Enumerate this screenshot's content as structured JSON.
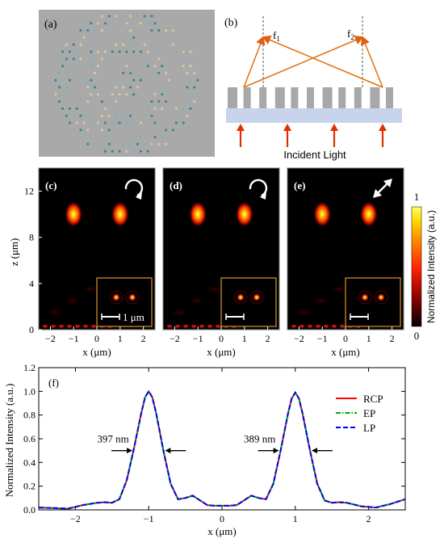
{
  "panel_labels": {
    "a": "(a)",
    "b": "(b)",
    "c": "(c)",
    "d": "(d)",
    "e": "(e)",
    "f": "(f)"
  },
  "panel_b": {
    "focus1": "f",
    "focus1_sub": "1",
    "focus2": "f",
    "focus2_sub": "2",
    "incident_label": "Incident Light"
  },
  "maps": {
    "ylabel": "z (μm)",
    "xlabel": "x (μm)",
    "x_ticks": [
      "−2",
      "−1",
      "0",
      "1",
      "2"
    ],
    "y_ticks": [
      "0",
      "4",
      "8",
      "12"
    ],
    "scale_bar": "1 μm",
    "polarization_icons": [
      "rcp-arrow-icon",
      "ep-arrow-icon",
      "lp-arrow-icon"
    ],
    "focus_x_um": [
      -1,
      1
    ],
    "focus_z_um": 10
  },
  "colorbar": {
    "label": "Normalized Intensity (a.u.)",
    "max_label": "1",
    "min_label": "0",
    "colors": [
      "#000000",
      "#800000",
      "#ff2000",
      "#ff8000",
      "#ffd800",
      "#ffff60"
    ]
  },
  "chart_data": {
    "type": "line",
    "title": "",
    "xlabel": "x (μm)",
    "ylabel": "Normalized Intensity (a.u.)",
    "xlim": [
      -2.5,
      2.5
    ],
    "ylim": [
      0,
      1.2
    ],
    "x_ticks": [
      -2,
      -1,
      0,
      1,
      2
    ],
    "x_tick_labels": [
      "−2",
      "−1",
      "0",
      "1",
      "2"
    ],
    "y_ticks": [
      0.0,
      0.2,
      0.4,
      0.6,
      0.8,
      1.0,
      1.2
    ],
    "y_tick_labels": [
      "0.0",
      "0.2",
      "0.4",
      "0.6",
      "0.8",
      "1.0",
      "1.2"
    ],
    "x": [
      -2.5,
      -2.3,
      -2.1,
      -1.9,
      -1.7,
      -1.6,
      -1.5,
      -1.4,
      -1.3,
      -1.2,
      -1.1,
      -1.05,
      -1.0,
      -0.95,
      -0.9,
      -0.8,
      -0.7,
      -0.6,
      -0.5,
      -0.4,
      -0.3,
      -0.2,
      -0.1,
      0.0,
      0.1,
      0.2,
      0.3,
      0.4,
      0.5,
      0.6,
      0.7,
      0.8,
      0.9,
      0.95,
      1.0,
      1.05,
      1.1,
      1.2,
      1.3,
      1.4,
      1.5,
      1.6,
      1.7,
      1.9,
      2.1,
      2.3,
      2.5
    ],
    "series": [
      {
        "name": "RCP",
        "color": "#ff0000",
        "dash": "solid",
        "values": [
          0.02,
          0.015,
          0.01,
          0.04,
          0.06,
          0.065,
          0.06,
          0.09,
          0.25,
          0.52,
          0.82,
          0.95,
          1.0,
          0.95,
          0.82,
          0.5,
          0.22,
          0.09,
          0.1,
          0.12,
          0.08,
          0.04,
          0.035,
          0.035,
          0.035,
          0.04,
          0.08,
          0.12,
          0.1,
          0.09,
          0.22,
          0.5,
          0.81,
          0.94,
          0.99,
          0.94,
          0.81,
          0.5,
          0.22,
          0.08,
          0.06,
          0.065,
          0.06,
          0.03,
          0.02,
          0.05,
          0.09
        ]
      },
      {
        "name": "EP",
        "color": "#00aa00",
        "dash": "dashdot",
        "values": [
          0.02,
          0.015,
          0.01,
          0.04,
          0.06,
          0.065,
          0.06,
          0.09,
          0.25,
          0.52,
          0.82,
          0.95,
          1.0,
          0.95,
          0.82,
          0.5,
          0.22,
          0.09,
          0.1,
          0.12,
          0.08,
          0.04,
          0.035,
          0.035,
          0.035,
          0.04,
          0.08,
          0.12,
          0.1,
          0.09,
          0.22,
          0.5,
          0.81,
          0.94,
          0.99,
          0.94,
          0.81,
          0.5,
          0.22,
          0.08,
          0.06,
          0.065,
          0.06,
          0.03,
          0.02,
          0.05,
          0.09
        ]
      },
      {
        "name": "LP",
        "color": "#0000ff",
        "dash": "dashed",
        "values": [
          0.02,
          0.015,
          0.01,
          0.04,
          0.06,
          0.065,
          0.06,
          0.09,
          0.25,
          0.52,
          0.82,
          0.95,
          1.0,
          0.95,
          0.82,
          0.5,
          0.22,
          0.09,
          0.1,
          0.12,
          0.08,
          0.04,
          0.035,
          0.035,
          0.035,
          0.04,
          0.08,
          0.12,
          0.1,
          0.09,
          0.22,
          0.5,
          0.81,
          0.94,
          0.99,
          0.94,
          0.81,
          0.5,
          0.22,
          0.08,
          0.06,
          0.065,
          0.06,
          0.03,
          0.02,
          0.05,
          0.09
        ]
      }
    ],
    "annotations": [
      {
        "text": "397 nm",
        "fwhm_left": -1.2,
        "fwhm_right": -0.8,
        "level": 0.5
      },
      {
        "text": "389 nm",
        "fwhm_left": 0.8,
        "fwhm_right": 1.2,
        "level": 0.5
      }
    ],
    "legend_position": "top-right"
  }
}
